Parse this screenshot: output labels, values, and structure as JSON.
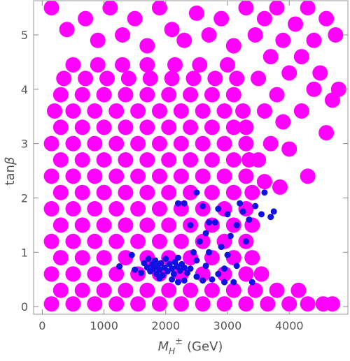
{
  "chart_data": {
    "type": "scatter",
    "x_label": {
      "symbol": "M",
      "subscript": "H",
      "superscript": "±",
      "unit": "(GeV)"
    },
    "y_label": {
      "function": "tan",
      "symbol": "β"
    },
    "xlim": [
      -140,
      4950
    ],
    "ylim": [
      -0.14,
      5.63
    ],
    "xticks": [
      0,
      1000,
      2000,
      3000,
      4000
    ],
    "yticks": [
      0,
      1,
      2,
      3,
      4,
      5
    ],
    "series": [
      {
        "color": "#ff00ff",
        "x": [
          150,
          500,
          850,
          1200,
          1550,
          1900,
          2250,
          2600,
          2950,
          3300,
          3650,
          4000,
          4300,
          4550,
          4700,
          300,
          650,
          1000,
          1350,
          1700,
          2050,
          2400,
          2750,
          3100,
          3450,
          3800,
          4150,
          150,
          500,
          850,
          1200,
          1550,
          1900,
          2250,
          2600,
          2950,
          3300,
          3550,
          300,
          650,
          1000,
          1350,
          1700,
          2050,
          2400,
          2750,
          3100,
          3400,
          150,
          500,
          850,
          1200,
          1550,
          1900,
          2250,
          2600,
          2950,
          3300,
          300,
          650,
          1000,
          1350,
          1700,
          2050,
          2400,
          2750,
          3100,
          3400,
          150,
          500,
          850,
          1200,
          1550,
          1900,
          2250,
          2600,
          2950,
          3300,
          300,
          650,
          1000,
          1350,
          1700,
          2050,
          2400,
          2750,
          3100,
          3400,
          150,
          500,
          850,
          1200,
          1550,
          1900,
          2250,
          2600,
          2950,
          3300,
          300,
          650,
          1000,
          1350,
          1700,
          2050,
          2400,
          2750,
          3100,
          3350,
          150,
          500,
          850,
          1200,
          1550,
          1900,
          2250,
          2600,
          2950,
          3300,
          300,
          650,
          1000,
          1350,
          1700,
          2050,
          2400,
          2750,
          3100,
          3300,
          200,
          500,
          850,
          1200,
          1550,
          1900,
          2250,
          2600,
          2950,
          3250,
          300,
          650,
          1000,
          1350,
          1700,
          2050,
          2400,
          2750,
          3100,
          350,
          700,
          1050,
          1400,
          1750,
          2100,
          2450,
          2800,
          3150,
          500,
          900,
          1300,
          1700,
          2150,
          2550,
          3000,
          150,
          400,
          700,
          900,
          1100,
          1300,
          1500,
          1700,
          1900,
          2100,
          2300,
          2500,
          2700,
          2900,
          3100,
          3300,
          3450,
          3600,
          3700,
          3800,
          3900,
          4000,
          4100,
          4200,
          4300,
          4400,
          4500,
          4600,
          4700,
          4800,
          4600,
          3500,
          3600,
          3800,
          3900,
          4000,
          4200,
          4300,
          3500,
          3700,
          3600,
          3850,
          4400,
          4750
        ],
        "values": [
          0.05,
          0.05,
          0.05,
          0.05,
          0.05,
          0.05,
          0.05,
          0.05,
          0.05,
          0.05,
          0.05,
          0.05,
          0.05,
          0.05,
          0.05,
          0.3,
          0.3,
          0.3,
          0.3,
          0.3,
          0.3,
          0.3,
          0.3,
          0.3,
          0.3,
          0.3,
          0.3,
          0.6,
          0.6,
          0.6,
          0.6,
          0.6,
          0.6,
          0.6,
          0.6,
          0.6,
          0.6,
          0.6,
          0.9,
          0.9,
          0.9,
          0.9,
          0.9,
          0.9,
          0.9,
          0.9,
          0.9,
          0.9,
          1.2,
          1.2,
          1.2,
          1.2,
          1.2,
          1.2,
          1.2,
          1.2,
          1.2,
          1.2,
          1.5,
          1.5,
          1.5,
          1.5,
          1.5,
          1.5,
          1.5,
          1.5,
          1.5,
          1.5,
          1.8,
          1.8,
          1.8,
          1.8,
          1.8,
          1.8,
          1.8,
          1.8,
          1.8,
          1.8,
          2.1,
          2.1,
          2.1,
          2.1,
          2.1,
          2.1,
          2.1,
          2.1,
          2.1,
          2.1,
          2.4,
          2.4,
          2.4,
          2.4,
          2.4,
          2.4,
          2.4,
          2.4,
          2.4,
          2.4,
          2.7,
          2.7,
          2.7,
          2.7,
          2.7,
          2.7,
          2.7,
          2.7,
          2.7,
          2.7,
          3,
          3,
          3,
          3,
          3,
          3,
          3,
          3,
          3,
          3,
          3.3,
          3.3,
          3.3,
          3.3,
          3.3,
          3.3,
          3.3,
          3.3,
          3.3,
          3.3,
          3.6,
          3.6,
          3.6,
          3.6,
          3.6,
          3.6,
          3.6,
          3.6,
          3.6,
          3.6,
          3.9,
          3.9,
          3.9,
          3.9,
          3.9,
          3.9,
          3.9,
          3.9,
          3.9,
          4.2,
          4.2,
          4.2,
          4.2,
          4.2,
          4.2,
          4.2,
          4.2,
          4.2,
          4.45,
          4.45,
          4.45,
          4.45,
          4.45,
          4.45,
          4.45,
          5.5,
          5.1,
          5.3,
          4.9,
          5.5,
          5.0,
          5.3,
          4.8,
          5.5,
          5.1,
          4.9,
          5.4,
          5.0,
          5.3,
          4.8,
          5.5,
          5.0,
          5.3,
          4.6,
          5.5,
          4.9,
          4.3,
          5.2,
          4.6,
          5.5,
          4.9,
          4.3,
          5.3,
          3.8,
          4.0,
          3.2,
          4.2,
          3.6,
          3.9,
          3.4,
          2.9,
          3.6,
          2.4,
          2.7,
          3.0,
          2.3,
          2.2,
          4.0,
          5.0
        ]
      },
      {
        "color": "#1010e0",
        "x": [
          1250,
          1450,
          1500,
          1600,
          1650,
          1700,
          1720,
          1750,
          1780,
          1800,
          1830,
          1850,
          1870,
          1900,
          1920,
          1950,
          1980,
          2000,
          2030,
          2060,
          2100,
          2130,
          2150,
          2180,
          2200,
          2230,
          2260,
          2300,
          2100,
          2200,
          2300,
          2350,
          1900,
          2400,
          2500,
          2600,
          2750,
          2850,
          2950,
          3100,
          3400,
          2450,
          2550,
          2650,
          2700,
          2800,
          2900,
          3000,
          3050,
          3150,
          3250,
          3300,
          3350,
          3450,
          3550,
          3600,
          3700,
          3750,
          2200,
          2300,
          2500,
          2600,
          2700,
          2850,
          3000,
          3200,
          2400,
          2500,
          2650,
          2950,
          3150
        ],
        "values": [
          0.74,
          0.95,
          0.68,
          0.62,
          0.8,
          0.72,
          0.88,
          0.65,
          0.78,
          0.7,
          0.85,
          0.6,
          0.75,
          0.68,
          0.8,
          0.58,
          0.72,
          0.88,
          0.65,
          0.78,
          0.7,
          0.6,
          0.82,
          0.74,
          0.9,
          0.66,
          0.78,
          0.72,
          0.5,
          0.45,
          0.48,
          0.62,
          0.52,
          0.7,
          0.55,
          0.48,
          0.5,
          0.6,
          0.45,
          0.45,
          0.45,
          1.0,
          1.2,
          1.35,
          1.0,
          1.55,
          1.1,
          0.95,
          1.3,
          1.5,
          1.75,
          1.2,
          1.6,
          1.85,
          1.7,
          2.1,
          1.65,
          1.75,
          1.9,
          1.9,
          2.1,
          1.85,
          1.55,
          1.8,
          1.7,
          1.9,
          1.5,
          0.85,
          0.75,
          0.7,
          0.75
        ]
      }
    ]
  }
}
